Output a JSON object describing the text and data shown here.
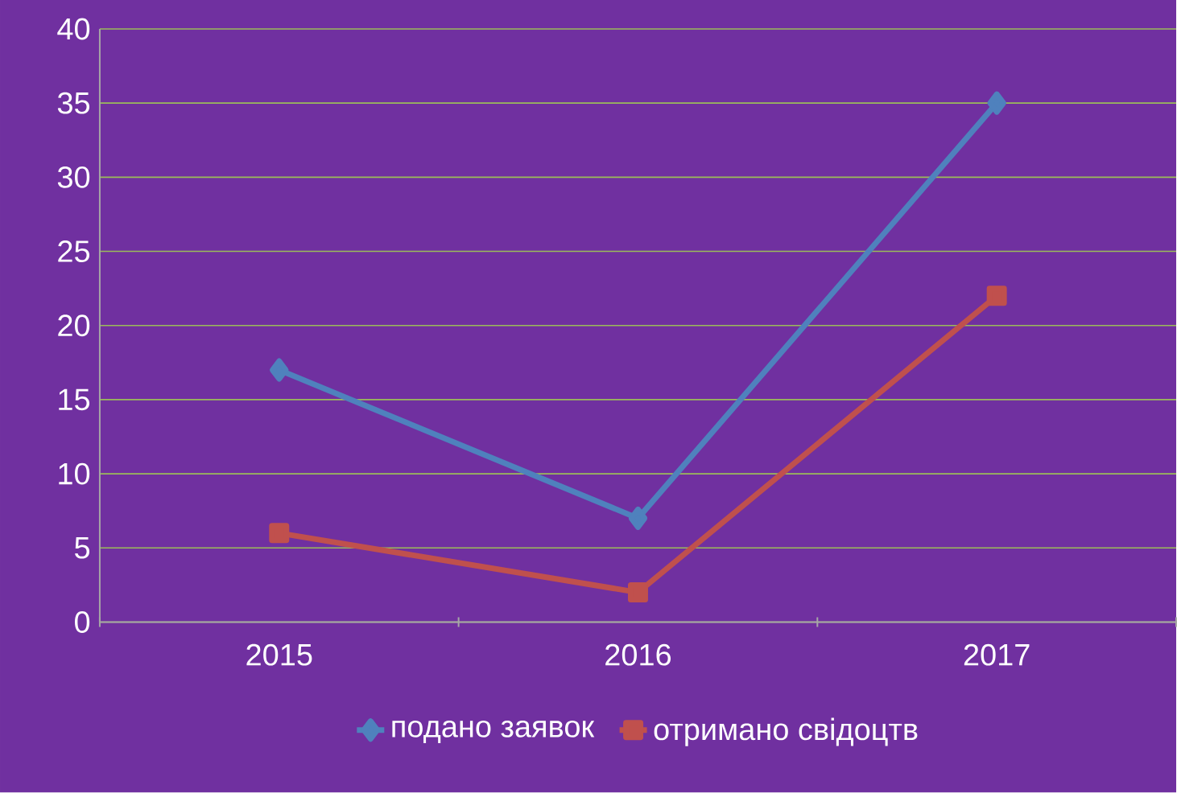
{
  "chart_data": {
    "type": "line",
    "categories": [
      "2015",
      "2016",
      "2017"
    ],
    "series": [
      {
        "name": "подано заявок",
        "color": "#4f81bd",
        "marker": "diamond",
        "values": [
          17,
          7,
          35
        ]
      },
      {
        "name": "отримано свідоцтв",
        "color": "#c0504d",
        "marker": "square",
        "values": [
          6,
          2,
          22
        ]
      }
    ],
    "ylim": [
      0,
      40
    ],
    "yticks": [
      0,
      5,
      10,
      15,
      20,
      25,
      30,
      35,
      40
    ],
    "grid": "y",
    "legend": "bottom"
  }
}
